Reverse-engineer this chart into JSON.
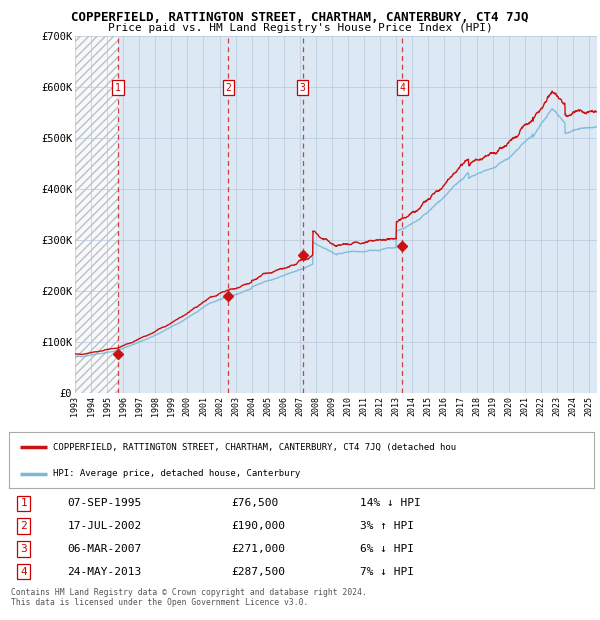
{
  "title": "COPPERFIELD, RATTINGTON STREET, CHARTHAM, CANTERBURY, CT4 7JQ",
  "subtitle": "Price paid vs. HM Land Registry's House Price Index (HPI)",
  "hpi_legend": "HPI: Average price, detached house, Canterbury",
  "property_legend": "COPPERFIELD, RATTINGTON STREET, CHARTHAM, CANTERBURY, CT4 7JQ (detached hou",
  "ylim": [
    0,
    700000
  ],
  "yticks": [
    0,
    100000,
    200000,
    300000,
    400000,
    500000,
    600000,
    700000
  ],
  "ytick_labels": [
    "£0",
    "£100K",
    "£200K",
    "£300K",
    "£400K",
    "£500K",
    "£600K",
    "£700K"
  ],
  "sales": [
    {
      "date": 1995.68,
      "price": 76500,
      "label": "1",
      "hpi_pct": "14% ↓ HPI",
      "date_str": "07-SEP-1995",
      "price_str": "£76,500"
    },
    {
      "date": 2002.54,
      "price": 190000,
      "label": "2",
      "hpi_pct": "3% ↑ HPI",
      "date_str": "17-JUL-2002",
      "price_str": "£190,000"
    },
    {
      "date": 2007.18,
      "price": 271000,
      "label": "3",
      "hpi_pct": "6% ↓ HPI",
      "date_str": "06-MAR-2007",
      "price_str": "£271,000"
    },
    {
      "date": 2013.39,
      "price": 287500,
      "label": "4",
      "hpi_pct": "7% ↓ HPI",
      "date_str": "24-MAY-2013",
      "price_str": "£287,500"
    }
  ],
  "hatch_end": 1995.68,
  "hpi_color": "#7ab8d9",
  "property_color": "#cc1111",
  "sale_marker_color": "#cc1111",
  "dashed_line_color": "#cc2222",
  "bg_color": "#dce9f5",
  "grid_color": "#b8c8da",
  "copyright": "Contains HM Land Registry data © Crown copyright and database right 2024.\nThis data is licensed under the Open Government Licence v3.0.",
  "xmin": 1993.0,
  "xmax": 2025.5
}
